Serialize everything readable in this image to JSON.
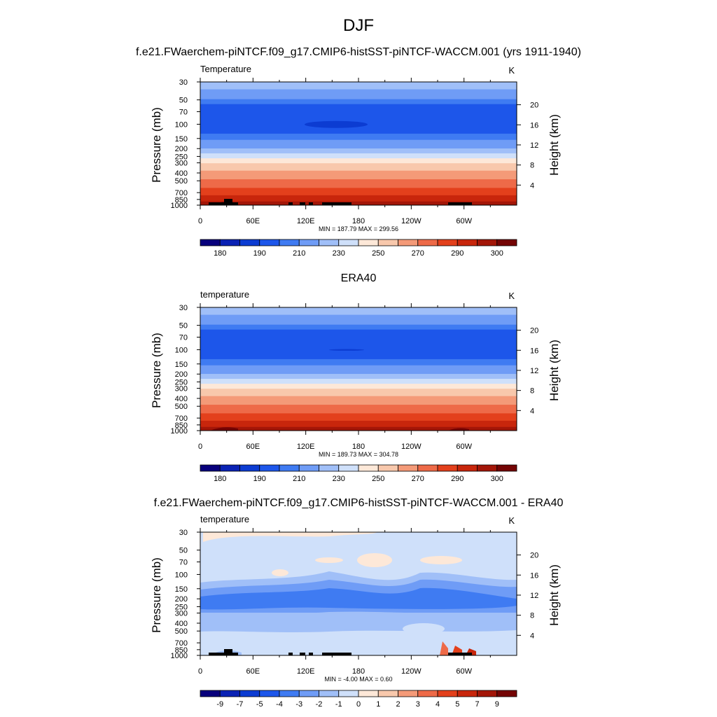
{
  "page": {
    "main_title": "DJF",
    "case_title": "f.e21.FWaerchem-piNTCF.f09_g17.CMIP6-histSST-piNTCF-WACCM.001 (yrs 1911-1940)",
    "obs_title": "ERA40",
    "diff_title": "f.e21.FWaerchem-piNTCF.f09_g17.CMIP6-histSST-piNTCF-WACCM.001 - ERA40"
  },
  "colors": {
    "abs_palette": [
      "#08007c",
      "#0a22b4",
      "#0c3cd2",
      "#1d56ea",
      "#3f7bf2",
      "#6f9cf6",
      "#a0bff8",
      "#cfe0fa",
      "#fde8d8",
      "#f8c8ac",
      "#f49a78",
      "#ee6a48",
      "#e3401c",
      "#c8260c",
      "#a31608",
      "#740404"
    ],
    "diff_palette": [
      "#08007c",
      "#0a22b4",
      "#0c3cd2",
      "#1d56ea",
      "#3f7bf2",
      "#6f9cf6",
      "#a0bff8",
      "#cfe0fa",
      "#fde8d8",
      "#f8c8ac",
      "#f49a78",
      "#ee6a48",
      "#e3401c",
      "#c8260c",
      "#a31608",
      "#740404"
    ],
    "terrain": "#000000"
  },
  "chart_data": [
    {
      "type": "contour",
      "panel_id": "model",
      "title": "",
      "left_label": "Temperature",
      "units": "K",
      "ylabel": "Pressure (mb)",
      "ylabel_right": "Height (km)",
      "x_ticks": [
        "0",
        "60E",
        "120E",
        "180",
        "120W",
        "60W"
      ],
      "x_tick_lons": [
        0,
        60,
        120,
        180,
        240,
        300
      ],
      "xlim": [
        0,
        360
      ],
      "y_ticks": [
        "30",
        "50",
        "70",
        "100",
        "150",
        "200",
        "250",
        "300",
        "400",
        "500",
        "700",
        "850",
        "1000"
      ],
      "y_tick_values": [
        30,
        50,
        70,
        100,
        150,
        200,
        250,
        300,
        400,
        500,
        700,
        850,
        1000
      ],
      "ylim": [
        30,
        1000
      ],
      "height_ticks": [
        "4",
        "8",
        "12",
        "16",
        "20"
      ],
      "height_values": [
        4,
        8,
        12,
        16,
        20
      ],
      "stats": "MIN = 187.79  MAX = 299.56",
      "colorbar_labels": [
        "180",
        "190",
        "210",
        "230",
        "250",
        "270",
        "290",
        "300"
      ],
      "colorbar_label_positions": [
        1,
        3,
        5,
        7,
        9,
        11,
        13,
        15
      ],
      "field": "absolute",
      "terrain": true
    },
    {
      "type": "contour",
      "panel_id": "obs",
      "title": "ERA40",
      "left_label": "temperature",
      "units": "K",
      "ylabel": "Pressure (mb)",
      "ylabel_right": "Height (km)",
      "x_ticks": [
        "0",
        "60E",
        "120E",
        "180",
        "120W",
        "60W"
      ],
      "x_tick_lons": [
        0,
        60,
        120,
        180,
        240,
        300
      ],
      "xlim": [
        0,
        360
      ],
      "y_ticks": [
        "30",
        "50",
        "70",
        "100",
        "150",
        "200",
        "250",
        "300",
        "400",
        "500",
        "700",
        "850",
        "1000"
      ],
      "y_tick_values": [
        30,
        50,
        70,
        100,
        150,
        200,
        250,
        300,
        400,
        500,
        700,
        850,
        1000
      ],
      "ylim": [
        30,
        1000
      ],
      "height_ticks": [
        "4",
        "8",
        "12",
        "16",
        "20"
      ],
      "height_values": [
        4,
        8,
        12,
        16,
        20
      ],
      "stats": "MIN = 189.73  MAX = 304.78",
      "colorbar_labels": [
        "180",
        "190",
        "210",
        "230",
        "250",
        "270",
        "290",
        "300"
      ],
      "colorbar_label_positions": [
        1,
        3,
        5,
        7,
        9,
        11,
        13,
        15
      ],
      "field": "absolute",
      "terrain": false
    },
    {
      "type": "contour",
      "panel_id": "diff",
      "title": "f.e21.FWaerchem-piNTCF.f09_g17.CMIP6-histSST-piNTCF-WACCM.001 - ERA40",
      "left_label": "temperature",
      "units": "K",
      "ylabel": "Pressure (mb)",
      "ylabel_right": "Height (km)",
      "x_ticks": [
        "0",
        "60E",
        "120E",
        "180",
        "120W",
        "60W"
      ],
      "x_tick_lons": [
        0,
        60,
        120,
        180,
        240,
        300
      ],
      "xlim": [
        0,
        360
      ],
      "y_ticks": [
        "30",
        "50",
        "70",
        "100",
        "150",
        "200",
        "250",
        "300",
        "400",
        "500",
        "700",
        "850",
        "1000"
      ],
      "y_tick_values": [
        30,
        50,
        70,
        100,
        150,
        200,
        250,
        300,
        400,
        500,
        700,
        850,
        1000
      ],
      "ylim": [
        30,
        1000
      ],
      "height_ticks": [
        "4",
        "8",
        "12",
        "16",
        "20"
      ],
      "height_values": [
        4,
        8,
        12,
        16,
        20
      ],
      "stats": "MIN =  -4.00  MAX =   0.60",
      "colorbar_labels": [
        "-9",
        "-7",
        "-5",
        "-4",
        "-3",
        "-2",
        "-1",
        "0",
        "1",
        "2",
        "3",
        "4",
        "5",
        "7",
        "9"
      ],
      "colorbar_label_positions": [
        1,
        2,
        3,
        4,
        5,
        6,
        7,
        8,
        9,
        10,
        11,
        12,
        13,
        14,
        15
      ],
      "field": "difference",
      "terrain": true
    }
  ]
}
